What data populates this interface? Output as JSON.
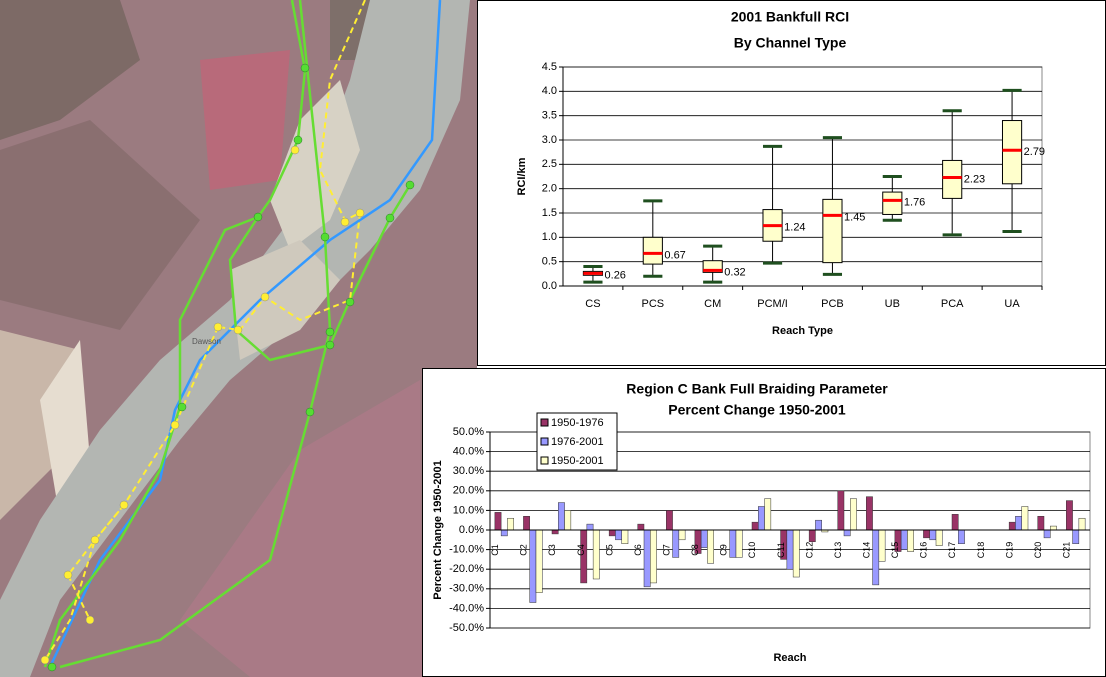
{
  "map": {
    "label": "Dawson"
  },
  "chart_data": [
    {
      "type": "box",
      "title": "2001 Bankfull RCI",
      "subtitle": "By Channel Type",
      "x_label": "Reach Type",
      "y_label": "RCI/km",
      "categories": [
        "CS",
        "PCS",
        "CM",
        "PCM/I",
        "PCB",
        "UB",
        "PCA",
        "UA"
      ],
      "min": [
        0.08,
        0.2,
        0.08,
        0.47,
        0.24,
        1.35,
        1.05,
        1.12
      ],
      "q1": [
        0.22,
        0.45,
        0.28,
        0.92,
        0.48,
        1.47,
        1.8,
        2.1
      ],
      "median": [
        0.26,
        0.67,
        0.32,
        1.24,
        1.45,
        1.76,
        2.23,
        2.79
      ],
      "q3": [
        0.3,
        1.0,
        0.52,
        1.57,
        1.78,
        1.93,
        2.58,
        3.4
      ],
      "max": [
        0.4,
        1.75,
        0.82,
        2.87,
        3.05,
        2.25,
        3.6,
        4.02
      ],
      "box_color": "#ffffcc",
      "median_color": "#ff0000",
      "whisker_color": "#1f4f1f",
      "ylim": [
        0,
        4.5
      ],
      "yticks": [
        {
          "value": 0,
          "label": "0.0"
        },
        0.5,
        {
          "value": 1,
          "label": "1.0"
        },
        1.5,
        {
          "value": 2,
          "label": "2.0"
        },
        2.5,
        {
          "value": 3,
          "label": "3.0"
        },
        3.5,
        {
          "value": 4,
          "label": "4.0"
        },
        4.5
      ],
      "grid": true
    },
    {
      "type": "bar",
      "title": "Region C Bank Full Braiding Parameter",
      "subtitle": "Percent Change 1950-2001",
      "x_label": "Reach",
      "y_label": "Percent Change 1950-2001",
      "categories": [
        "C1",
        "C2",
        "C3",
        "C4",
        "C5",
        "C6",
        "C7",
        "C8",
        "C9",
        "C10",
        "C11",
        "C12",
        "C13",
        "C14",
        "C15",
        "C16",
        "C17",
        "C18",
        "C19",
        "C20",
        "C21"
      ],
      "series": [
        {
          "name": "1950-1976",
          "color": "#993366",
          "values": [
            9,
            7,
            -2,
            -27,
            -3,
            3,
            10,
            -12,
            0,
            4,
            -15,
            -6,
            20,
            17,
            -11,
            -4,
            8,
            0,
            4,
            7,
            15
          ]
        },
        {
          "name": "1976-2001",
          "color": "#9999ff",
          "values": [
            -3,
            -37,
            14,
            3,
            -5,
            -29,
            -14,
            -9,
            -14,
            12,
            -20,
            5,
            -3,
            -28,
            -10,
            -5,
            -7,
            0,
            7,
            -4,
            -7
          ]
        },
        {
          "name": "1950-2001",
          "color": "#ffffcc",
          "values": [
            6,
            -32,
            10,
            -25,
            -7,
            -27,
            -5,
            -17,
            -14,
            16,
            -24,
            -1,
            16,
            -16,
            -11,
            -8,
            0,
            0,
            12,
            2,
            6
          ]
        }
      ],
      "ylim": [
        -50,
        50
      ],
      "yticks": [
        {
          "value": -50,
          "label": "-50.0%"
        },
        {
          "value": -40,
          "label": "-40.0%"
        },
        {
          "value": -30,
          "label": "-30.0%"
        },
        {
          "value": -20,
          "label": "-20.0%"
        },
        {
          "value": -10,
          "label": "-10.0%"
        },
        {
          "value": 0,
          "label": "0.0%"
        },
        {
          "value": 10,
          "label": "10.0%"
        },
        {
          "value": 20,
          "label": "20.0%"
        },
        {
          "value": 30,
          "label": "30.0%"
        },
        {
          "value": 40,
          "label": "40.0%"
        },
        {
          "value": 50,
          "label": "50.0%"
        }
      ],
      "grid": true,
      "legend": "upper-left"
    }
  ]
}
